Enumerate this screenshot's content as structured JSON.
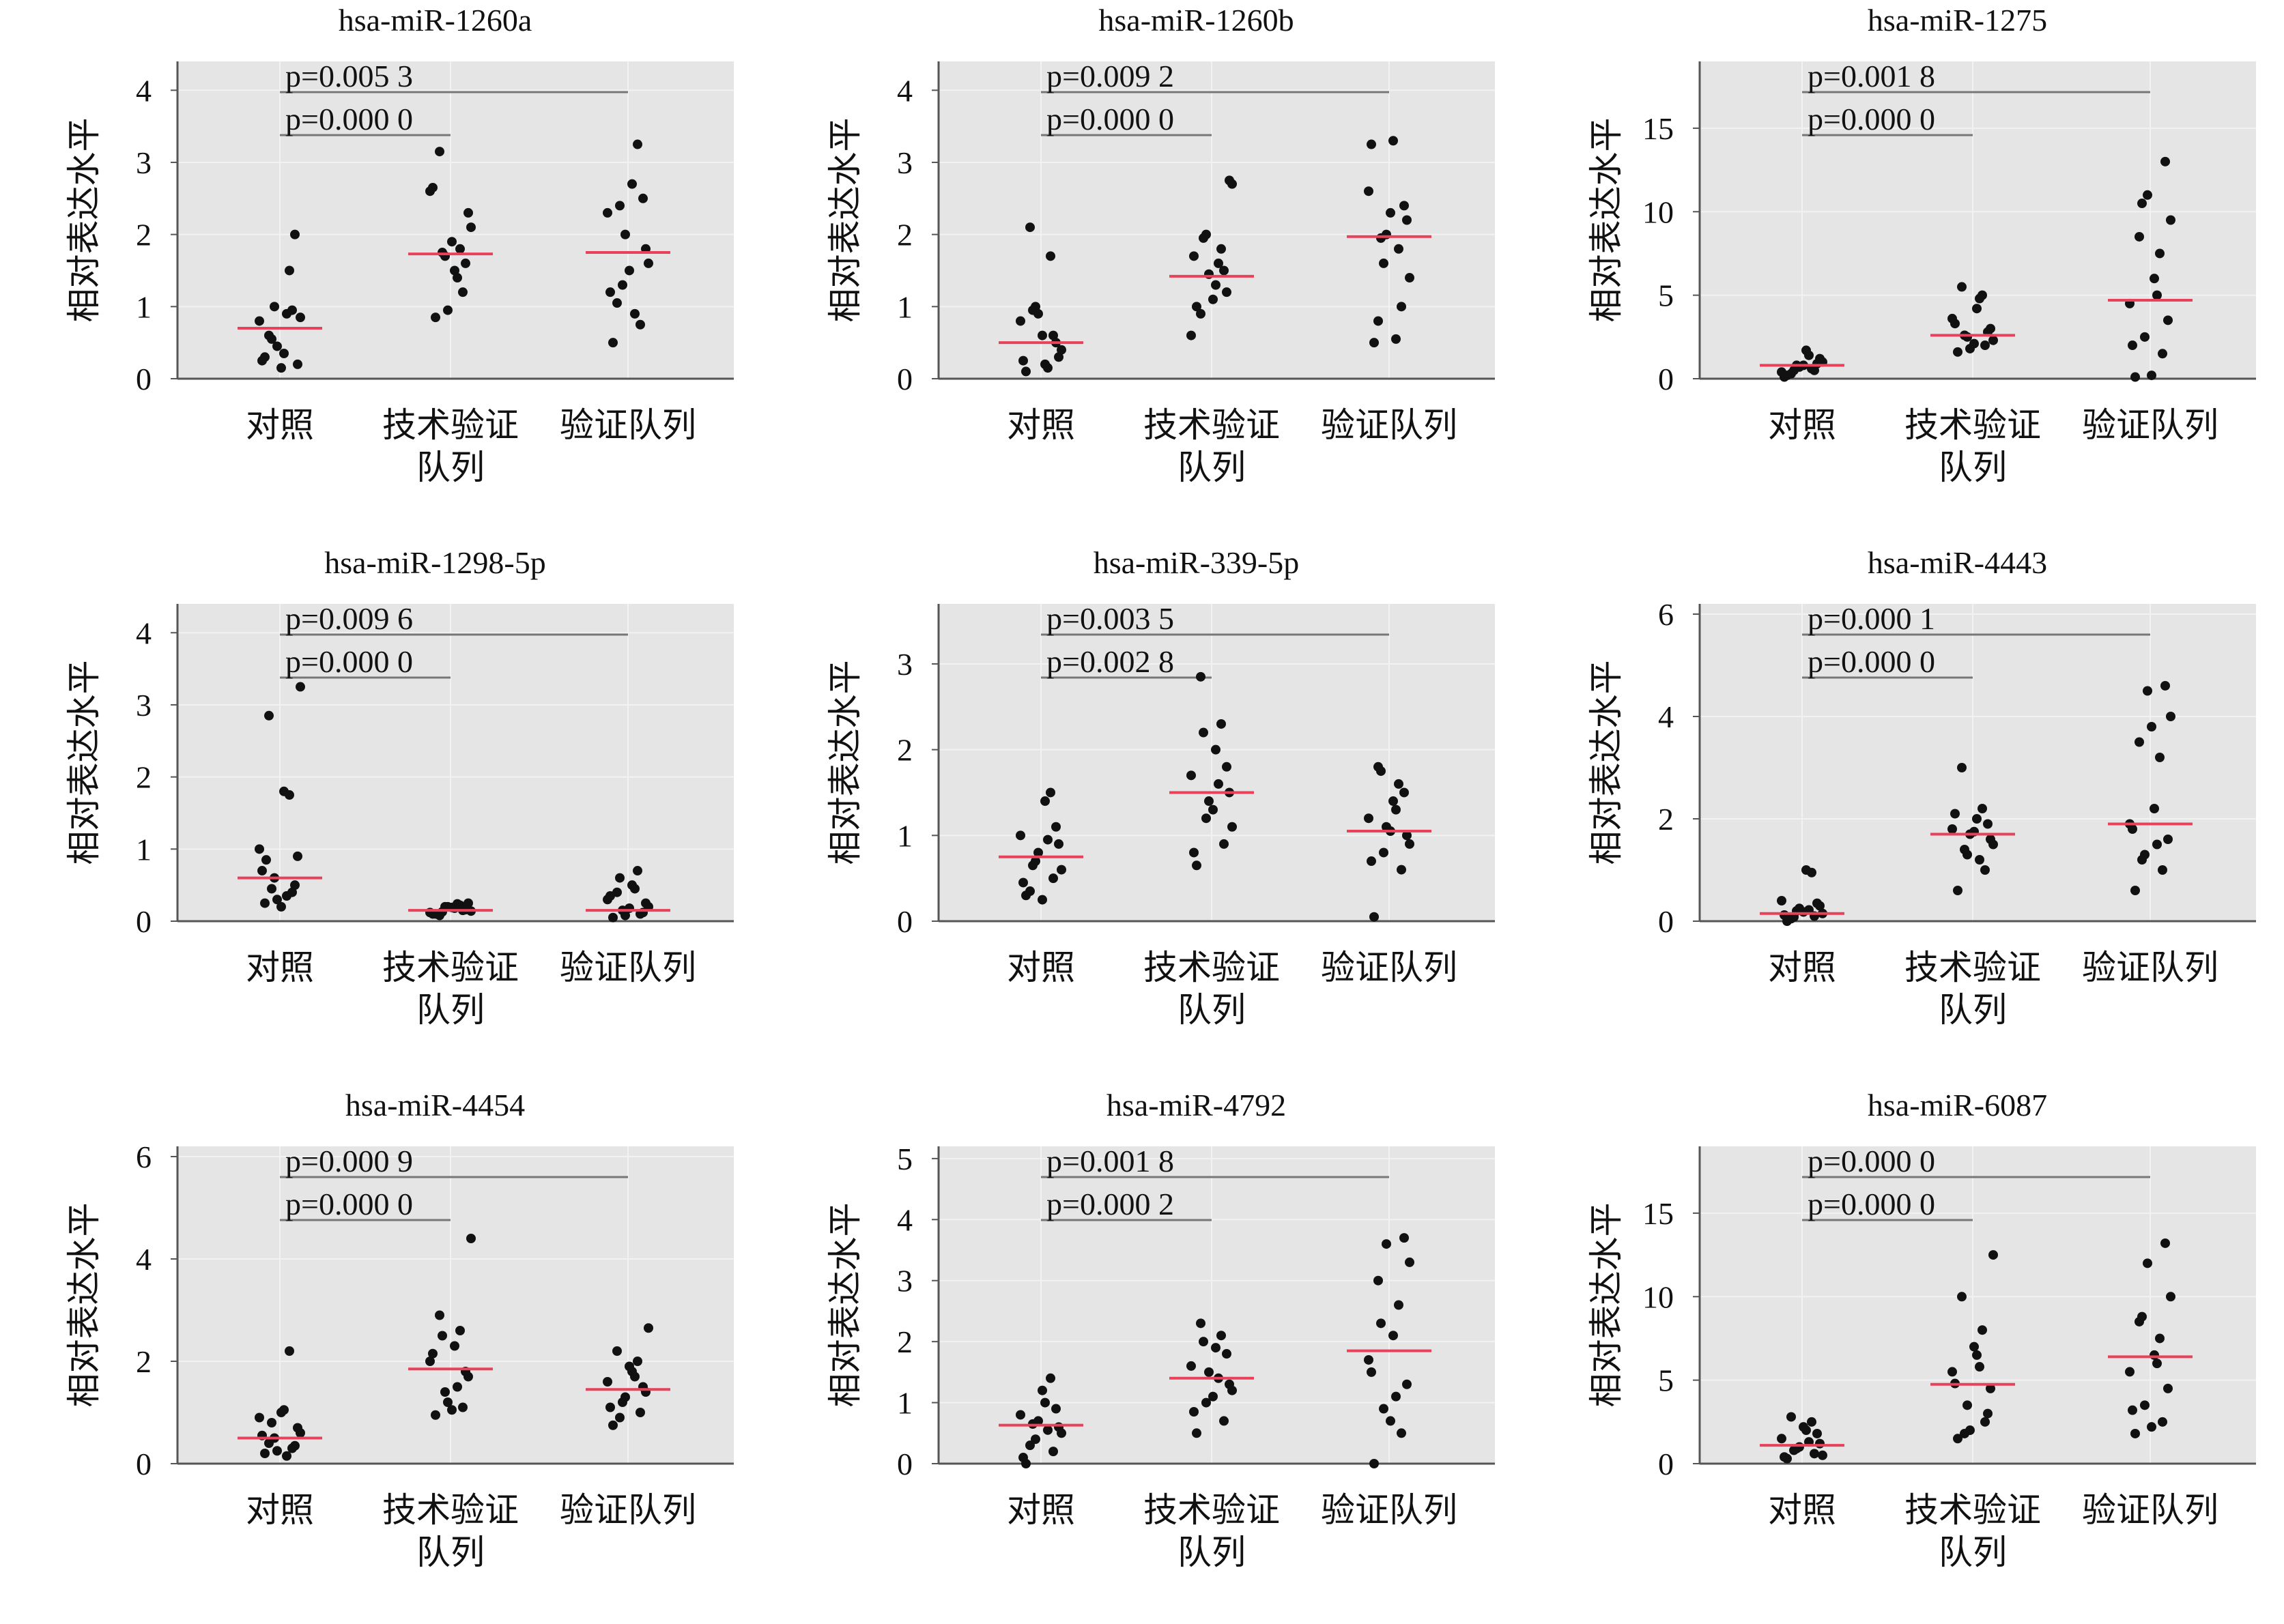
{
  "chart_data": [
    {
      "type": "scatter",
      "title": "hsa-miR-1260a",
      "ylabel": "相对表达水平",
      "ylim": [
        0,
        4.4
      ],
      "yticks": [
        0,
        1,
        2,
        3,
        4
      ],
      "categories": [
        "对照",
        "技术验证\n队列",
        "验证队列"
      ],
      "pvalues": [
        "p=0.005 3",
        "p=0.000 0"
      ],
      "means": [
        0.7,
        1.73,
        1.75
      ],
      "series": [
        {
          "values": [
            0.3,
            0.95,
            1.0,
            0.2,
            0.8,
            0.35,
            1.5,
            0.6,
            0.85,
            0.45,
            2.0,
            0.25,
            0.9,
            0.55,
            0.15
          ]
        },
        {
          "values": [
            0.85,
            1.2,
            1.7,
            2.3,
            2.6,
            1.5,
            1.8,
            3.15,
            2.1,
            0.95,
            1.6,
            2.65,
            1.4,
            1.75,
            1.9
          ]
        },
        {
          "values": [
            0.5,
            0.75,
            1.3,
            1.8,
            2.3,
            2.7,
            3.25,
            1.05,
            1.6,
            2.0,
            2.5,
            1.2,
            0.9,
            2.4,
            1.5
          ]
        }
      ]
    },
    {
      "type": "scatter",
      "title": "hsa-miR-1260b",
      "ylabel": "相对表达水平",
      "ylim": [
        0,
        4.4
      ],
      "yticks": [
        0,
        1,
        2,
        3,
        4
      ],
      "categories": [
        "对照",
        "技术验证\n队列",
        "验证队列"
      ],
      "pvalues": [
        "p=0.009 2",
        "p=0.000 0"
      ],
      "means": [
        0.5,
        1.42,
        1.97
      ],
      "series": [
        {
          "values": [
            0.1,
            0.6,
            1.0,
            0.3,
            0.8,
            0.2,
            1.7,
            2.1,
            0.4,
            0.9,
            0.5,
            0.25,
            0.15,
            0.95,
            0.6
          ]
        },
        {
          "values": [
            1.0,
            1.5,
            2.0,
            2.75,
            0.6,
            1.3,
            1.8,
            0.9,
            2.7,
            1.45,
            1.2,
            1.7,
            1.6,
            1.95,
            1.1
          ]
        },
        {
          "values": [
            0.5,
            1.0,
            1.6,
            2.2,
            2.6,
            3.3,
            1.8,
            0.8,
            1.4,
            2.0,
            2.4,
            3.25,
            0.55,
            1.95,
            2.3
          ]
        }
      ]
    },
    {
      "type": "scatter",
      "title": "hsa-miR-1275",
      "ylabel": "相对表达水平",
      "ylim": [
        0,
        19
      ],
      "yticks": [
        0,
        5,
        10,
        15
      ],
      "categories": [
        "对照",
        "技术验证\n队列",
        "验证队列"
      ],
      "pvalues": [
        "p=0.001 8",
        "p=0.000 0"
      ],
      "means": [
        0.8,
        2.6,
        4.7
      ],
      "series": [
        {
          "values": [
            0.2,
            0.5,
            0.8,
            1.2,
            0.4,
            1.7,
            0.6,
            0.3,
            1.0,
            0.7,
            0.9,
            0.1,
            1.4,
            0.5,
            0.8
          ]
        },
        {
          "values": [
            1.6,
            2.0,
            2.5,
            3.0,
            3.6,
            4.2,
            5.0,
            5.5,
            2.3,
            1.8,
            2.8,
            3.3,
            4.8,
            2.6,
            2.1
          ]
        },
        {
          "values": [
            0.1,
            1.5,
            2.5,
            3.5,
            4.5,
            6.0,
            7.5,
            8.5,
            9.5,
            11.0,
            13.0,
            2.0,
            5.0,
            10.5,
            0.2
          ]
        }
      ]
    },
    {
      "type": "scatter",
      "title": "hsa-miR-1298-5p",
      "ylabel": "相对表达水平",
      "ylim": [
        0,
        4.4
      ],
      "yticks": [
        0,
        1,
        2,
        3,
        4
      ],
      "categories": [
        "对照",
        "技术验证\n队列",
        "验证队列"
      ],
      "pvalues": [
        "p=0.009 6",
        "p=0.000 0"
      ],
      "means": [
        0.6,
        0.15,
        0.15
      ],
      "series": [
        {
          "values": [
            0.25,
            0.4,
            0.6,
            0.9,
            1.0,
            1.8,
            1.75,
            2.85,
            3.25,
            0.3,
            0.5,
            0.7,
            0.35,
            0.45,
            0.2,
            0.85
          ]
        },
        {
          "values": [
            0.1,
            0.15,
            0.2,
            0.25,
            0.12,
            0.18,
            0.22,
            0.08,
            0.14,
            0.2,
            0.16,
            0.1,
            0.24,
            0.13,
            0.19
          ]
        },
        {
          "values": [
            0.05,
            0.1,
            0.15,
            0.25,
            0.3,
            0.5,
            0.7,
            0.4,
            0.2,
            0.08,
            0.12,
            0.35,
            0.45,
            0.6,
            0.18
          ]
        }
      ]
    },
    {
      "type": "scatter",
      "title": "hsa-miR-339-5p",
      "ylabel": "相对表达水平",
      "ylim": [
        0,
        3.7
      ],
      "yticks": [
        0,
        1,
        2,
        3
      ],
      "categories": [
        "对照",
        "技术验证\n队列",
        "验证队列"
      ],
      "pvalues": [
        "p=0.003 5",
        "p=0.002 8"
      ],
      "means": [
        0.75,
        1.5,
        1.05
      ],
      "series": [
        {
          "values": [
            0.3,
            0.5,
            0.7,
            0.9,
            1.0,
            1.4,
            1.5,
            0.35,
            0.6,
            0.8,
            1.1,
            0.45,
            0.95,
            0.65,
            0.25
          ]
        },
        {
          "values": [
            0.65,
            0.9,
            1.2,
            1.5,
            1.7,
            2.0,
            2.3,
            2.85,
            1.1,
            1.4,
            1.8,
            0.8,
            1.6,
            2.2,
            1.3
          ]
        },
        {
          "values": [
            0.05,
            0.6,
            0.8,
            1.0,
            1.2,
            1.4,
            1.6,
            1.8,
            0.9,
            1.1,
            1.5,
            0.7,
            1.3,
            1.75,
            1.05
          ]
        }
      ]
    },
    {
      "type": "scatter",
      "title": "hsa-miR-4443",
      "ylabel": "相对表达水平",
      "ylim": [
        0,
        6.2
      ],
      "yticks": [
        0,
        2,
        4,
        6
      ],
      "categories": [
        "对照",
        "技术验证\n队列",
        "验证队列"
      ],
      "pvalues": [
        "p=0.000 1",
        "p=0.000 0"
      ],
      "means": [
        0.15,
        1.7,
        1.9
      ],
      "series": [
        {
          "values": [
            0.0,
            0.1,
            0.2,
            0.3,
            0.4,
            1.0,
            0.95,
            0.05,
            0.15,
            0.25,
            0.35,
            0.12,
            0.22,
            0.08,
            0.18
          ]
        },
        {
          "values": [
            0.6,
            1.0,
            1.3,
            1.6,
            1.8,
            2.0,
            2.2,
            3.0,
            1.5,
            1.7,
            1.9,
            2.1,
            1.2,
            1.4,
            1.75
          ]
        },
        {
          "values": [
            0.6,
            1.0,
            1.3,
            1.6,
            1.9,
            2.2,
            3.2,
            3.5,
            4.0,
            4.5,
            4.6,
            1.8,
            1.5,
            1.2,
            3.8
          ]
        }
      ]
    },
    {
      "type": "scatter",
      "title": "hsa-miR-4454",
      "ylabel": "相对表达水平",
      "ylim": [
        0,
        6.2
      ],
      "yticks": [
        0,
        2,
        4,
        6
      ],
      "categories": [
        "对照",
        "技术验证\n队列",
        "验证队列"
      ],
      "pvalues": [
        "p=0.000 9",
        "p=0.000 0"
      ],
      "means": [
        0.5,
        1.85,
        1.45
      ],
      "series": [
        {
          "values": [
            0.2,
            0.3,
            0.5,
            0.7,
            0.9,
            1.05,
            2.2,
            0.4,
            0.6,
            0.25,
            0.35,
            0.55,
            0.15,
            0.8,
            1.0
          ]
        },
        {
          "values": [
            0.95,
            1.1,
            1.4,
            1.7,
            2.0,
            2.3,
            2.6,
            2.9,
            4.4,
            1.2,
            1.8,
            2.15,
            1.5,
            2.5,
            1.05
          ]
        },
        {
          "values": [
            0.75,
            1.0,
            1.2,
            1.4,
            1.6,
            1.8,
            2.0,
            2.2,
            2.65,
            1.3,
            1.5,
            1.1,
            1.7,
            0.9,
            1.9
          ]
        }
      ]
    },
    {
      "type": "scatter",
      "title": "hsa-miR-4792",
      "ylabel": "相对表达水平",
      "ylim": [
        0,
        5.2
      ],
      "yticks": [
        0,
        1,
        2,
        3,
        4,
        5
      ],
      "categories": [
        "对照",
        "技术验证\n队列",
        "验证队列"
      ],
      "pvalues": [
        "p=0.001 8",
        "p=0.000 2"
      ],
      "means": [
        0.63,
        1.4,
        1.85
      ],
      "series": [
        {
          "values": [
            0.0,
            0.2,
            0.4,
            0.6,
            0.8,
            1.0,
            1.4,
            0.3,
            0.5,
            0.7,
            0.9,
            0.1,
            0.55,
            0.65,
            1.2
          ]
        },
        {
          "values": [
            0.5,
            0.7,
            1.0,
            1.3,
            1.6,
            1.9,
            2.1,
            2.3,
            1.2,
            1.5,
            1.8,
            0.85,
            1.4,
            2.0,
            1.1
          ]
        },
        {
          "values": [
            0.0,
            0.5,
            0.9,
            1.3,
            1.7,
            2.1,
            2.6,
            3.0,
            3.3,
            3.6,
            3.7,
            1.5,
            1.1,
            2.3,
            0.7
          ]
        }
      ]
    },
    {
      "type": "scatter",
      "title": "hsa-miR-6087",
      "ylabel": "相对表达水平",
      "ylim": [
        0,
        19
      ],
      "yticks": [
        0,
        5,
        10,
        15
      ],
      "categories": [
        "对照",
        "技术验证\n队列",
        "验证队列"
      ],
      "pvalues": [
        "p=0.000 0",
        "p=0.000 0"
      ],
      "means": [
        1.1,
        4.75,
        6.4
      ],
      "series": [
        {
          "values": [
            0.3,
            0.6,
            0.9,
            1.2,
            1.5,
            2.0,
            2.5,
            2.8,
            0.5,
            1.0,
            1.8,
            0.4,
            1.3,
            0.8,
            2.2
          ]
        },
        {
          "values": [
            1.5,
            2.5,
            3.5,
            4.5,
            5.5,
            6.5,
            8.0,
            10.0,
            12.5,
            2.0,
            3.0,
            4.8,
            5.8,
            1.8,
            7.0
          ]
        },
        {
          "values": [
            1.8,
            2.5,
            3.5,
            4.5,
            5.5,
            6.5,
            7.5,
            8.5,
            10.0,
            12.0,
            13.2,
            3.2,
            6.0,
            8.8,
            2.2
          ]
        }
      ]
    }
  ]
}
